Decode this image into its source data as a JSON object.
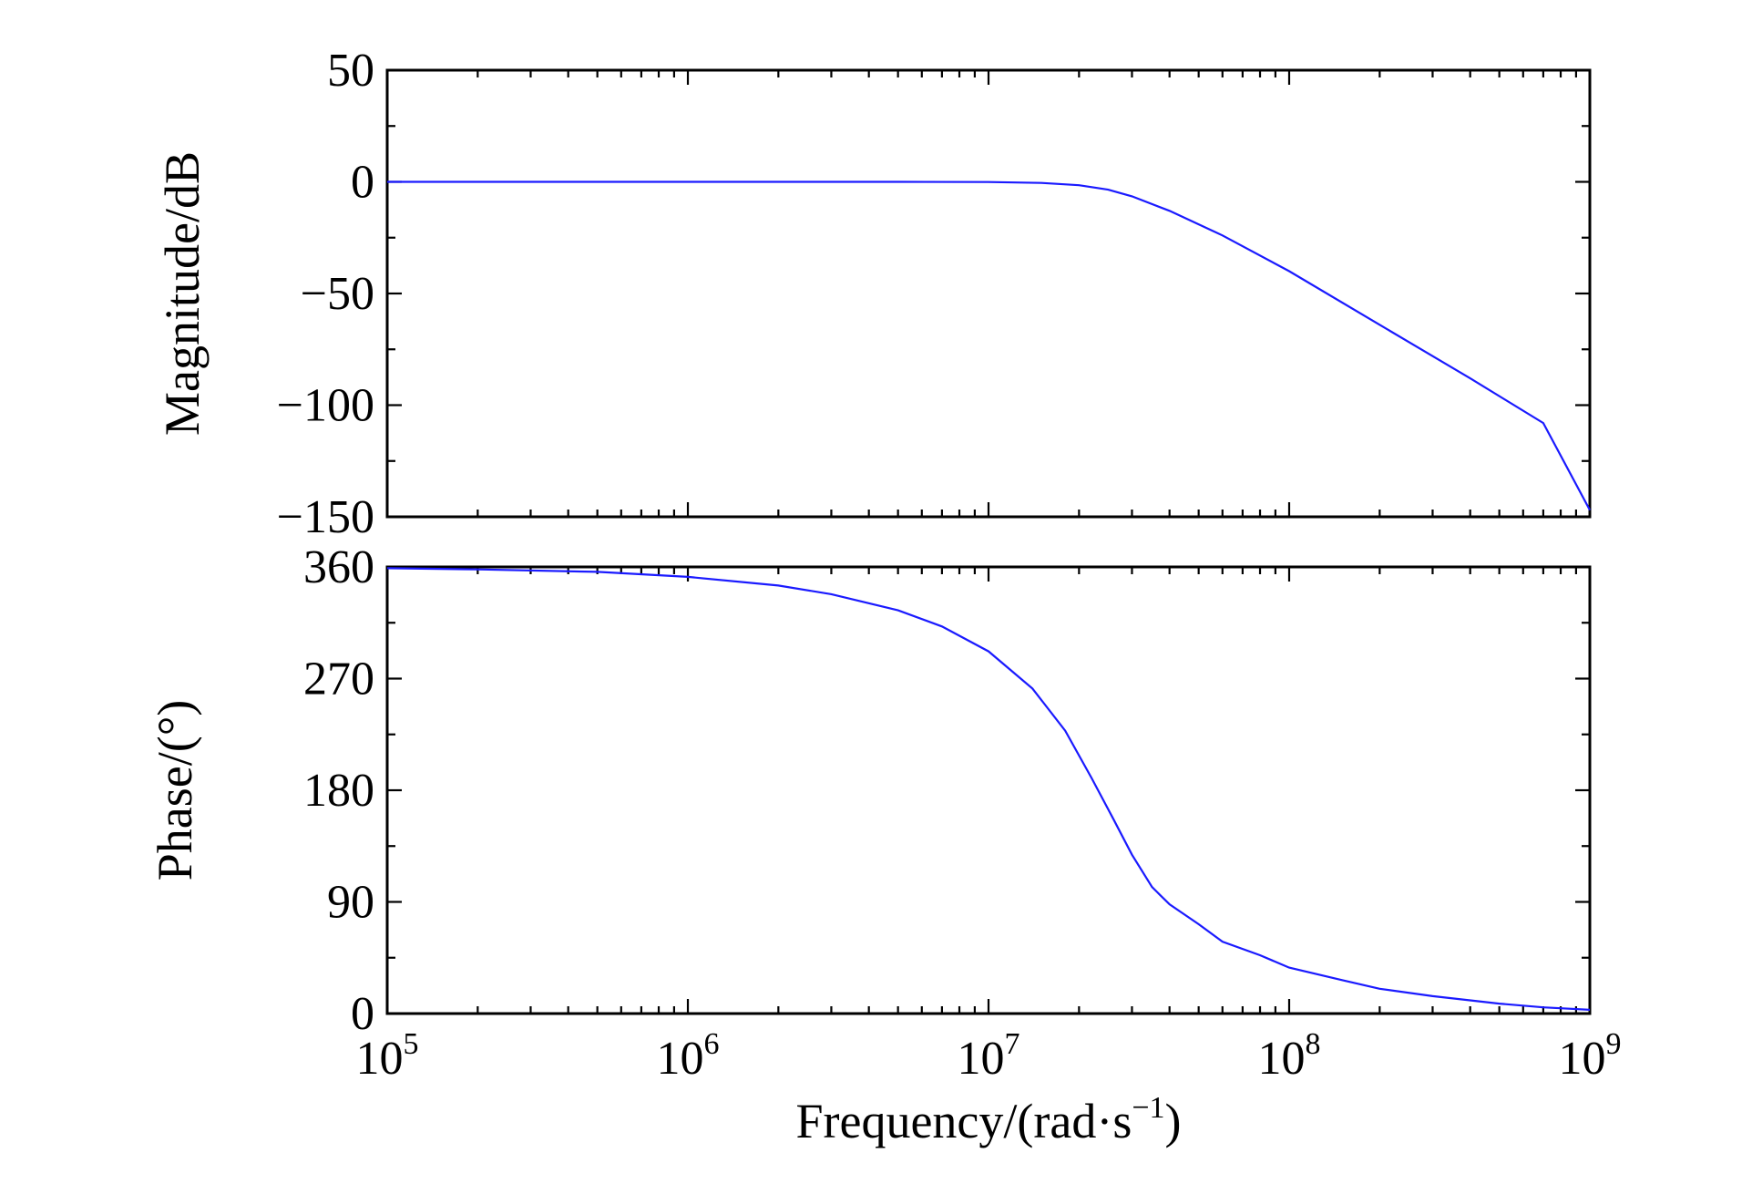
{
  "chart_data": [
    {
      "type": "line",
      "ylabel": "Magnitude/dB",
      "xscale": "log",
      "xlim": [
        100000,
        1000000000
      ],
      "ylim": [
        -150,
        50
      ],
      "yticks": [
        "50",
        "0",
        "−50",
        "−100",
        "−150"
      ],
      "ytick_values": [
        50,
        0,
        -50,
        -100,
        -150
      ],
      "series": [
        {
          "color": "#1a1aff",
          "x": [
            100000,
            1000000,
            5000000,
            10000000,
            15000000,
            20000000,
            25000000,
            30000000,
            40000000,
            60000000,
            100000000,
            200000000,
            400000000,
            700000000,
            1000000000
          ],
          "y": [
            0,
            0,
            0,
            -0.1,
            -0.5,
            -1.5,
            -3.5,
            -6.5,
            -13,
            -24,
            -40,
            -64,
            -88,
            -108,
            -147
          ]
        }
      ]
    },
    {
      "type": "line",
      "ylabel": "Phase/(°)",
      "xlabel_text": "Frequency/(rad·s",
      "xlabel_sup": "−1",
      "xlabel_close": ")",
      "xscale": "log",
      "xlim": [
        100000,
        1000000000
      ],
      "ylim": [
        0,
        360
      ],
      "yticks": [
        "360",
        "270",
        "180",
        "90",
        "0"
      ],
      "ytick_values": [
        360,
        270,
        180,
        90,
        0
      ],
      "xticks": [
        {
          "base": "10",
          "exp": "5",
          "value": 100000
        },
        {
          "base": "10",
          "exp": "6",
          "value": 1000000
        },
        {
          "base": "10",
          "exp": "7",
          "value": 10000000
        },
        {
          "base": "10",
          "exp": "8",
          "value": 100000000
        },
        {
          "base": "10",
          "exp": "9",
          "value": 1000000000
        }
      ],
      "series": [
        {
          "color": "#1a1aff",
          "x": [
            100000,
            200000,
            500000,
            1000000,
            2000000,
            3000000,
            5000000,
            7000000,
            10000000,
            14000000,
            18000000,
            22000000,
            26000000,
            30000000,
            35000000,
            40000000,
            50000000,
            60000000,
            80000000,
            100000000,
            150000000,
            200000000,
            300000000,
            500000000,
            700000000,
            1000000000
          ],
          "y": [
            359,
            358,
            356,
            352,
            345,
            338,
            325,
            312,
            292,
            262,
            228,
            190,
            157,
            128,
            102,
            88,
            72,
            58,
            47,
            37,
            27,
            20,
            14,
            8,
            5,
            3
          ]
        }
      ]
    }
  ]
}
